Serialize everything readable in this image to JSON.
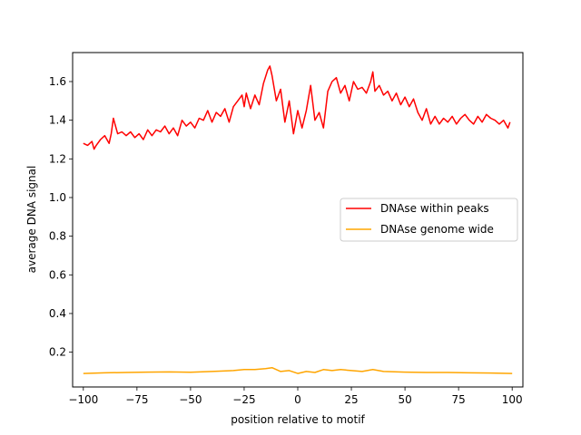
{
  "chart_data": {
    "type": "line",
    "title": "",
    "xlabel": "position relative to motif",
    "ylabel": "average DNA signal",
    "xlim": [
      -105,
      105
    ],
    "ylim": [
      0.02,
      1.75
    ],
    "xticks": [
      -100,
      -75,
      -50,
      -25,
      0,
      25,
      50,
      75,
      100
    ],
    "xtick_labels": [
      "−100",
      "−75",
      "−50",
      "−25",
      "0",
      "25",
      "50",
      "75",
      "100"
    ],
    "yticks": [
      0.2,
      0.4,
      0.6,
      0.8,
      1.0,
      1.2,
      1.4,
      1.6
    ],
    "ytick_labels": [
      "0.2",
      "0.4",
      "0.6",
      "0.8",
      "1.0",
      "1.2",
      "1.4",
      "1.6"
    ],
    "grid": false,
    "legend_position": "center-right",
    "series": [
      {
        "name": "DNAse within peaks",
        "color": "#ff0000",
        "x": [
          -100,
          -98,
          -96,
          -95,
          -94,
          -92,
          -90,
          -88,
          -87,
          -86,
          -84,
          -82,
          -80,
          -78,
          -76,
          -74,
          -72,
          -70,
          -68,
          -66,
          -64,
          -62,
          -60,
          -58,
          -56,
          -54,
          -52,
          -50,
          -48,
          -46,
          -44,
          -42,
          -40,
          -38,
          -36,
          -34,
          -32,
          -30,
          -28,
          -26,
          -25,
          -24,
          -22,
          -20,
          -18,
          -16,
          -14,
          -13,
          -12,
          -10,
          -8,
          -6,
          -4,
          -2,
          0,
          2,
          4,
          6,
          8,
          10,
          12,
          14,
          16,
          18,
          20,
          22,
          24,
          26,
          28,
          30,
          32,
          34,
          35,
          36,
          38,
          40,
          42,
          44,
          46,
          48,
          50,
          52,
          54,
          56,
          58,
          60,
          62,
          64,
          66,
          68,
          70,
          72,
          74,
          76,
          78,
          80,
          82,
          84,
          86,
          88,
          90,
          92,
          94,
          96,
          98,
          99
        ],
        "y": [
          1.28,
          1.27,
          1.29,
          1.25,
          1.27,
          1.3,
          1.32,
          1.28,
          1.33,
          1.41,
          1.33,
          1.34,
          1.32,
          1.34,
          1.31,
          1.33,
          1.3,
          1.35,
          1.32,
          1.35,
          1.34,
          1.37,
          1.33,
          1.36,
          1.32,
          1.4,
          1.37,
          1.39,
          1.36,
          1.41,
          1.4,
          1.45,
          1.39,
          1.44,
          1.42,
          1.46,
          1.39,
          1.47,
          1.5,
          1.53,
          1.47,
          1.54,
          1.46,
          1.53,
          1.48,
          1.59,
          1.66,
          1.68,
          1.63,
          1.5,
          1.56,
          1.39,
          1.5,
          1.33,
          1.45,
          1.36,
          1.45,
          1.58,
          1.4,
          1.44,
          1.36,
          1.55,
          1.6,
          1.62,
          1.54,
          1.58,
          1.5,
          1.6,
          1.56,
          1.57,
          1.54,
          1.6,
          1.65,
          1.55,
          1.58,
          1.53,
          1.55,
          1.5,
          1.54,
          1.48,
          1.52,
          1.47,
          1.51,
          1.44,
          1.4,
          1.46,
          1.38,
          1.42,
          1.38,
          1.41,
          1.39,
          1.42,
          1.38,
          1.41,
          1.43,
          1.4,
          1.38,
          1.42,
          1.39,
          1.43,
          1.41,
          1.4,
          1.38,
          1.4,
          1.36,
          1.39
        ]
      },
      {
        "name": "DNAse genome wide",
        "color": "#ffa500",
        "x": [
          -100,
          -90,
          -80,
          -70,
          -60,
          -50,
          -40,
          -30,
          -25,
          -20,
          -15,
          -12,
          -8,
          -4,
          0,
          4,
          8,
          12,
          16,
          20,
          25,
          30,
          35,
          40,
          50,
          60,
          70,
          80,
          90,
          100
        ],
        "y": [
          0.09,
          0.093,
          0.095,
          0.097,
          0.098,
          0.096,
          0.1,
          0.105,
          0.11,
          0.11,
          0.115,
          0.12,
          0.1,
          0.105,
          0.09,
          0.1,
          0.095,
          0.11,
          0.105,
          0.11,
          0.105,
          0.1,
          0.11,
          0.1,
          0.097,
          0.095,
          0.095,
          0.093,
          0.092,
          0.09
        ]
      }
    ]
  }
}
